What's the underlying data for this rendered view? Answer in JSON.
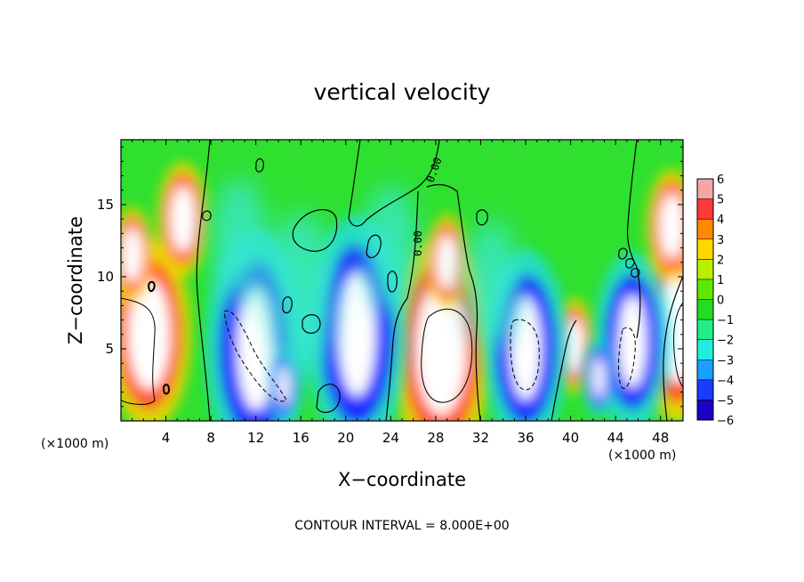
{
  "chart_data": {
    "type": "heatmap",
    "title": "vertical velocity",
    "xlabel": "X−coordinate",
    "ylabel": "Z−coordinate",
    "x_unit_left": "(×1000 m)",
    "x_unit_right": "(×1000 m)",
    "xlim": [
      0,
      50
    ],
    "ylim": [
      0,
      19.5
    ],
    "x_ticks": [
      4,
      8,
      12,
      16,
      20,
      24,
      28,
      32,
      36,
      40,
      44,
      48
    ],
    "x_tick_labels": [
      "4",
      "8",
      "12",
      "16",
      "20",
      "24",
      "28",
      "32",
      "36",
      "40",
      "44",
      "48"
    ],
    "y_ticks": [
      5,
      10,
      15
    ],
    "y_tick_labels": [
      "5",
      "10",
      "15"
    ],
    "colorbar": {
      "levels": [
        6,
        5,
        4,
        3,
        2,
        1,
        0,
        -1,
        -2,
        -3,
        -4,
        -5,
        -6
      ],
      "labels": [
        "6",
        "5",
        "4",
        "3",
        "2",
        "1",
        "0",
        "−1",
        "−2",
        "−3",
        "−4",
        "−5",
        "−6"
      ],
      "colors": [
        "#f4a6a6",
        "#ff3a3a",
        "#ff8a00",
        "#ffd600",
        "#b8f000",
        "#5ee800",
        "#22dd22",
        "#22ee88",
        "#22eedd",
        "#1aa0ff",
        "#1a3cff",
        "#1a00c8",
        "#8a1ab8"
      ]
    },
    "contour_labels": [
      "0.00",
      "0.00"
    ],
    "footer": "CONTOUR INTERVAL = 8.000E+00",
    "features": [
      {
        "kind": "up",
        "x": 2.5,
        "z": 6.0,
        "w": 5.0
      },
      {
        "kind": "up",
        "x": 5.5,
        "z": 14.0,
        "w": 3.0
      },
      {
        "kind": "up",
        "x": 1.0,
        "z": 11.5,
        "w": 2.5
      },
      {
        "kind": "up",
        "x": 28.5,
        "z": 5.0,
        "w": 6.0
      },
      {
        "kind": "up",
        "x": 29.0,
        "z": 11.0,
        "w": 2.5
      },
      {
        "kind": "up",
        "x": 49.5,
        "z": 6.5,
        "w": 5.0
      },
      {
        "kind": "up",
        "x": 49.0,
        "z": 13.5,
        "w": 3.0
      },
      {
        "kind": "up",
        "x": 40.3,
        "z": 5.2,
        "w": 2.5
      },
      {
        "kind": "down",
        "x": 12.0,
        "z": 5.0,
        "w": 6.0
      },
      {
        "kind": "down",
        "x": 14.5,
        "z": 2.5,
        "w": 2.0
      },
      {
        "kind": "down",
        "x": 21.0,
        "z": 6.0,
        "w": 6.0
      },
      {
        "kind": "down",
        "x": 36.0,
        "z": 5.0,
        "w": 5.0
      },
      {
        "kind": "down",
        "x": 45.5,
        "z": 5.5,
        "w": 4.5
      },
      {
        "kind": "down",
        "x": 42.5,
        "z": 3.0,
        "w": 2.0
      },
      {
        "kind": "weakdown",
        "x": 16.0,
        "z": 9.0,
        "w": 5.0
      },
      {
        "kind": "weakdown",
        "x": 10.5,
        "z": 12.5,
        "w": 4.0
      },
      {
        "kind": "weakdown",
        "x": 33.0,
        "z": 9.5,
        "w": 4.0
      },
      {
        "kind": "weakdown",
        "x": 24.0,
        "z": 12.0,
        "w": 4.0
      }
    ]
  }
}
